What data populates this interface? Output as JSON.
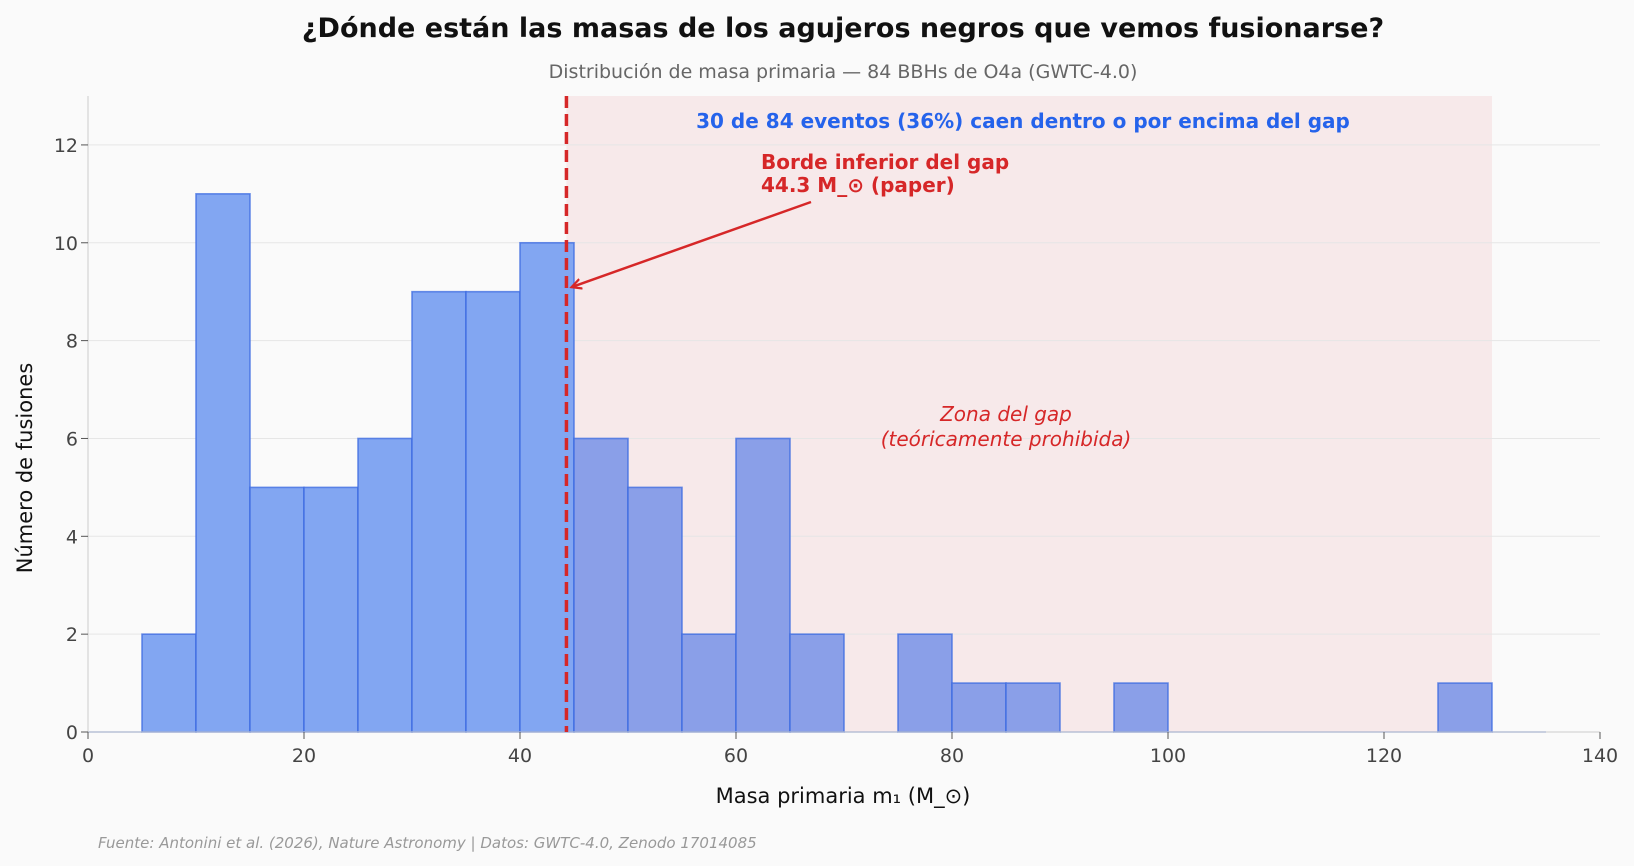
{
  "chart_data": {
    "type": "bar",
    "title": "¿Dónde están las masas de los agujeros negros que vemos fusionarse?",
    "subtitle": "Distribución de masa primaria — 84 BBHs de O4a (GWTC-4.0)",
    "xlabel": "Masa primaria m₁ (M_⊙)",
    "ylabel": "Número de fusiones",
    "xlim": [
      0,
      140
    ],
    "ylim": [
      0,
      13
    ],
    "x_ticks": [
      0,
      20,
      40,
      60,
      80,
      100,
      120,
      140
    ],
    "y_ticks": [
      0,
      2,
      4,
      6,
      8,
      10,
      12
    ],
    "grid": "horizontal",
    "bin_width": 5,
    "bin_edges_start": [
      0,
      5,
      10,
      15,
      20,
      25,
      30,
      35,
      40,
      45,
      50,
      55,
      60,
      65,
      70,
      75,
      80,
      85,
      90,
      95,
      100,
      105,
      110,
      115,
      120,
      125,
      130
    ],
    "values": [
      0,
      2,
      11,
      5,
      5,
      6,
      9,
      9,
      10,
      6,
      5,
      2,
      6,
      2,
      0,
      2,
      1,
      1,
      0,
      1,
      0,
      0,
      0,
      0,
      0,
      1,
      0
    ],
    "gap_lower_edge": 44.3,
    "gap_zone": [
      44.3,
      130
    ],
    "colors": {
      "bar_below_gap": "#82a6f2",
      "bar_in_gap": "#8a9fe8",
      "bar_edge": "#3b6ae0",
      "gap_zone_fill": "#f7e9ea",
      "gap_line": "#d62728",
      "annotation_blue": "#2563eb"
    },
    "annotations": {
      "gap_edge_line1": "Borde inferior del gap",
      "gap_edge_line2": "44.3 M_⊙ (paper)",
      "count_note": "30 de 84 eventos (36%) caen dentro o por encima del gap",
      "zone_line1": "Zona del gap",
      "zone_line2": "(teóricamente prohibida)",
      "arrow_target_y": 9.1
    },
    "source": "Fuente: Antonini et al. (2026), Nature Astronomy | Datos: GWTC-4.0, Zenodo 17014085"
  }
}
